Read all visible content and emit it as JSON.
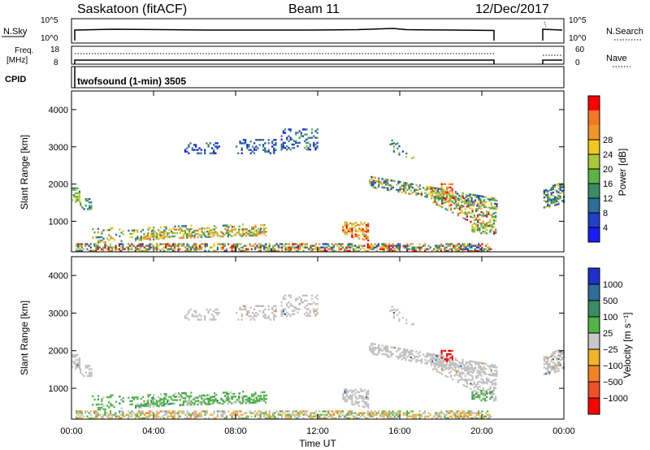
{
  "header": {
    "station": "Saskatoon (fitACF)",
    "beam": "Beam 11",
    "date": "12/Dec/2017"
  },
  "top_panels": {
    "nsky_label": "N.Sky",
    "nsky_ticks": [
      "10^5",
      "10^0"
    ],
    "nsearch_label": "N.Search",
    "nsearch_ticks": [
      "10^5",
      "10^0"
    ],
    "freq_label_line1": "Freq.",
    "freq_label_line2": "[MHz]",
    "freq_ticks": [
      "18",
      "8"
    ],
    "nave_label": "Nave",
    "nave_ticks": [
      "60",
      "0"
    ],
    "cpid_label": "CPID",
    "cpid_text": "twofsound (1-min) 3505"
  },
  "chart_data": [
    {
      "type": "heatmap",
      "name": "power",
      "ylabel": "Slant Range [km]",
      "xlabel": "",
      "yticks": [
        "1000",
        "2000",
        "3000",
        "4000"
      ],
      "colorbar_label": "Power [dB]",
      "colorbar_ticks": [
        "4",
        "8",
        "12",
        "16",
        "20",
        "24",
        "28"
      ],
      "colorbar_colors": [
        "#1a1aff",
        "#2040c8",
        "#2e6e9a",
        "#3a8c64",
        "#5bb446",
        "#a8c83a",
        "#f0c81e",
        "#f09628",
        "#f07828",
        "#ff0000"
      ],
      "xlim_hours": [
        0,
        24
      ],
      "ylim_km": [
        180,
        4500
      ]
    },
    {
      "type": "heatmap",
      "name": "velocity",
      "ylabel": "Slant Range [km]",
      "xlabel": "Time UT",
      "yticks": [
        "1000",
        "2000",
        "3000",
        "4000"
      ],
      "xticks": [
        "00:00",
        "04:00",
        "08:00",
        "12:00",
        "16:00",
        "20:00",
        "00:00"
      ],
      "colorbar_label": "Velocity [m s⁻¹]",
      "colorbar_ticks": [
        "1000",
        "500",
        "100",
        "25",
        "−25",
        "−100",
        "−500",
        "−1000"
      ],
      "colorbar_colors": [
        "#2030c8",
        "#2e6e9a",
        "#3a8c64",
        "#52b446",
        "#c8c8c8",
        "#f0b428",
        "#f08228",
        "#f05028",
        "#ff0000"
      ],
      "xlim_hours": [
        0,
        24
      ],
      "ylim_km": [
        180,
        4500
      ]
    }
  ],
  "colors": {
    "scatter_grey": "#c0c0c0"
  }
}
